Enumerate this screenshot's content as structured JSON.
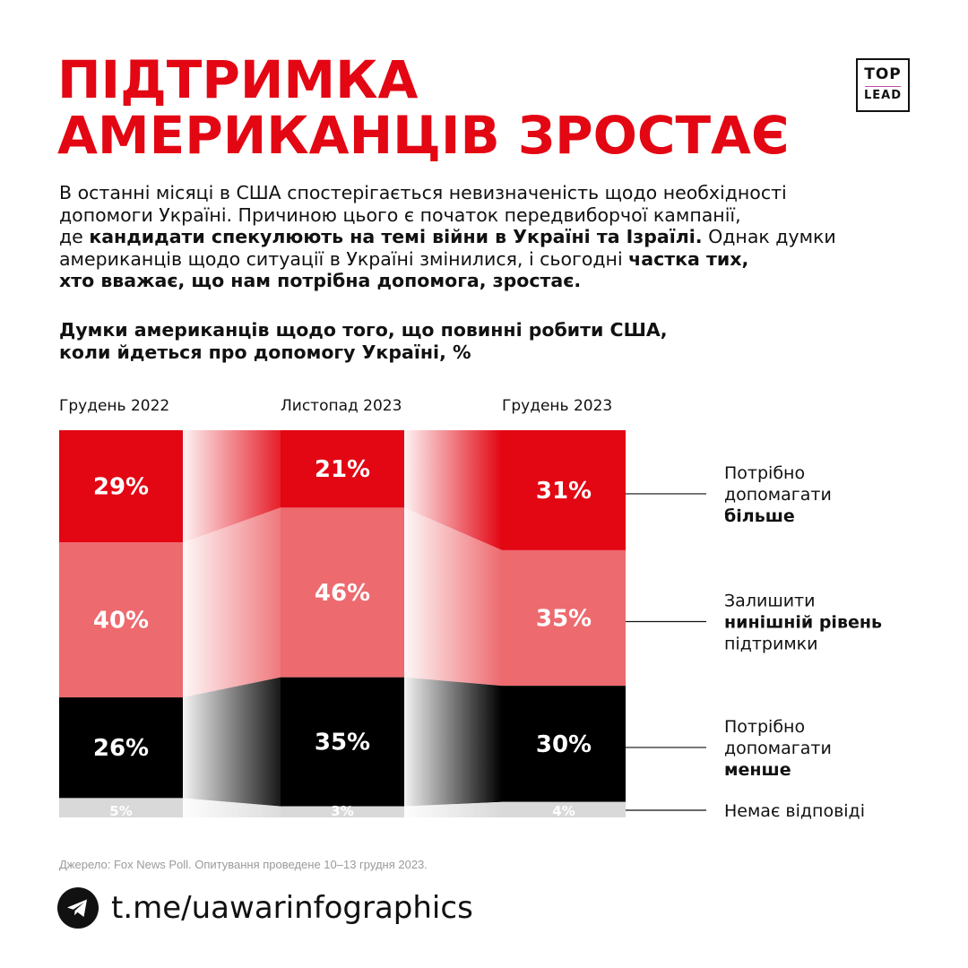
{
  "title": {
    "line1": "ПІДТРИМКА",
    "line2": "АМЕРИКАНЦІВ ЗРОСТАЄ"
  },
  "logo": {
    "top": "TOP",
    "bottom": "LEAD"
  },
  "intro": {
    "l1": "В останні місяці в США спостерігається невизначеність щодо необхідності",
    "l2": "допомоги Україні. Причиною цього є початок передвиборчої кампанії,",
    "l3_a": "де ",
    "l3_b": "кандидати спекулюють на темі війни в Україні та Ізраїлі.",
    "l3_c": " Однак думки",
    "l4_a": "американців щодо ситуації в Україні змінилися, і сьогодні ",
    "l4_b": "частка тих,",
    "l5": "хто вважає, що нам потрібна допомога, зростає."
  },
  "chart_heading": {
    "line1": "Думки американців щодо того, що повинні робити США,",
    "line2": "коли йдеться про допомогу Україні, %"
  },
  "chart_data": {
    "type": "bar",
    "stacked": true,
    "categories": [
      "Грудень 2022",
      "Листопад 2023",
      "Грудень 2023"
    ],
    "series": [
      {
        "name": "Потрібно допомагати більше",
        "values": [
          29,
          21,
          31
        ],
        "color": "#e30613",
        "labelColor": "#ffffff",
        "legend": [
          "Потрібно",
          "допомагати",
          "більше"
        ],
        "legendBold": [
          false,
          false,
          true
        ]
      },
      {
        "name": "Залишити нинішній рівень підтримки",
        "values": [
          40,
          46,
          35
        ],
        "color": "#ed6a6f",
        "labelColor": "#ffffff",
        "legend": [
          "Залишити",
          "нинішній рівень",
          "підтримки"
        ],
        "legendBold": [
          false,
          true,
          false
        ]
      },
      {
        "name": "Потрібно допомагати менше",
        "values": [
          26,
          35,
          30
        ],
        "color": "#000000",
        "labelColor": "#ffffff",
        "legend": [
          "Потрібно",
          "допомагати",
          "менше"
        ],
        "legendBold": [
          false,
          false,
          true
        ]
      },
      {
        "name": "Немає відповіді",
        "values": [
          5,
          3,
          4
        ],
        "color": "#d9d9d9",
        "labelColor": "#ffffff",
        "legend": [
          "Немає відповіді"
        ],
        "legendBold": [
          false
        ]
      }
    ],
    "value_suffix": "%",
    "ylim": [
      0,
      100
    ],
    "legend_position": "right"
  },
  "source": "Джерело: Fox News Poll. Опитування проведене 10–13 грудня 2023.",
  "footer": {
    "link": "t.me/uawarinfographics"
  }
}
